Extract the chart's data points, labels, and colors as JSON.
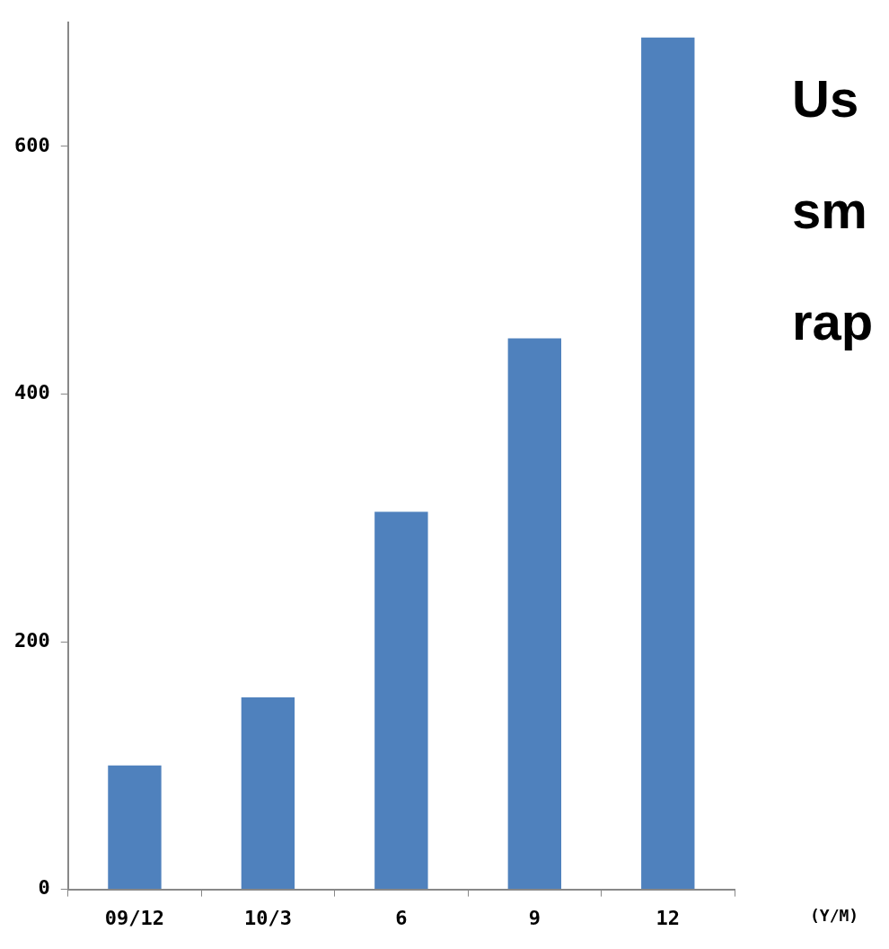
{
  "chart_data": {
    "type": "bar",
    "categories": [
      "09/12",
      "10/3",
      "6",
      "9",
      "12"
    ],
    "values": [
      100,
      155,
      305,
      445,
      688
    ],
    "color": "#4f81bd",
    "ylim": [
      0,
      700
    ],
    "yticks": [
      0,
      200,
      400,
      600
    ],
    "grid": false,
    "legend": false,
    "xlabel": "(Y/M)",
    "annotations": [
      "Us",
      "sm",
      "rap"
    ]
  }
}
